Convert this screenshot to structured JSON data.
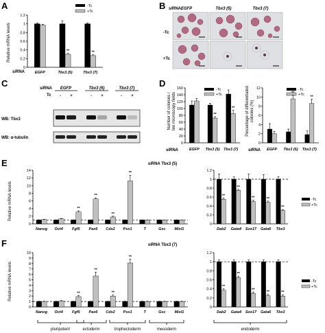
{
  "panels": {
    "A": {
      "letter": "A",
      "ylabel": "Relative mRNA levels",
      "row_label": "siRNA",
      "legend": [
        "-Tc",
        "+Tc"
      ],
      "categories": [
        "EGFP",
        "Tbx3 (5)",
        "Tbx3 (7)"
      ],
      "yticks": [
        "0",
        "0.2",
        "0.4",
        "0.6",
        "0.8",
        "1",
        "1.2"
      ]
    },
    "B": {
      "letter": "B",
      "header": "siRNA",
      "columns": [
        "EGFP",
        "Tbx3 (5)",
        "Tbx3 (7)"
      ],
      "rows": [
        "-Tc",
        "+Tc"
      ]
    },
    "C": {
      "letter": "C",
      "sirna_label": "siRNA",
      "tc_label": "Tc",
      "columns": [
        "EGFP",
        "Tbx3 (5)",
        "Tbx3 (7)"
      ],
      "tc_marks": [
        "-",
        "+",
        "-",
        "+",
        "-",
        "+"
      ],
      "blot1": "WB: Tbx3",
      "blot2": "WB: α-tubulin"
    },
    "D": {
      "letter": "D",
      "ylabel_left_1": "Number of colonies /",
      "ylabel_left_2": "ten microscopy fields",
      "ylabel_right_1": "Percentage of differentiated",
      "ylabel_right_2": "colonies (%)",
      "row_label": "siRNA",
      "legend": [
        "-Tc",
        "+Tc"
      ],
      "categories": [
        "EGFP",
        "Tbx3 (5)",
        "Tbx3 (7)"
      ],
      "yticks_left": [
        "0",
        "20",
        "40",
        "60",
        "80",
        "100",
        "120",
        "140",
        "160"
      ],
      "yticks_right": [
        "0",
        "2",
        "4",
        "6",
        "8",
        "10",
        "12"
      ]
    },
    "E": {
      "letter": "E",
      "title": "siRNA Tbx3 (5)",
      "ylabel": "Relative mRNA levels",
      "legend": [
        "-Tc",
        "+Tc"
      ],
      "yticks_left": [
        "0",
        "2",
        "4",
        "6",
        "8",
        "10",
        "12",
        "14"
      ],
      "yticks_right": [
        "0",
        "0.2",
        "0.4",
        "0.6",
        "0.8",
        "1",
        "1.2"
      ]
    },
    "F": {
      "letter": "F",
      "title": "siRNA Tbx3 (7)",
      "ylabel": "Relative mRNA levels",
      "legend": [
        "-Tc",
        "+Tc"
      ],
      "yticks_left": [
        "0",
        "1",
        "2",
        "3",
        "4",
        "5",
        "6",
        "7",
        "8",
        "9",
        "10"
      ],
      "yticks_right": [
        "0",
        "0.2",
        "0.4",
        "0.6",
        "0.8",
        "1",
        "1.2"
      ],
      "groups": [
        "pluripotent",
        "ectoderm",
        "trophectoderm",
        "mesoderm",
        "endoderm"
      ]
    }
  },
  "colors": {
    "minus_tc": "#000000",
    "plus_tc": "#c0c0c0"
  },
  "chart_data": [
    {
      "id": "A",
      "type": "bar",
      "categories": [
        "EGFP",
        "Tbx3 (5)",
        "Tbx3 (7)"
      ],
      "series": [
        {
          "name": "-Tc",
          "values": [
            1.0,
            1.0,
            1.0
          ]
        },
        {
          "name": "+Tc",
          "values": [
            0.97,
            0.3,
            0.27
          ]
        }
      ],
      "errors": [
        [
          0.02,
          0.07,
          0.02
        ],
        [
          0.02,
          0.02,
          0.02
        ]
      ],
      "sig": [
        [
          false,
          false,
          false
        ],
        [
          false,
          true,
          true
        ]
      ],
      "ylim": [
        0,
        1.2
      ]
    },
    {
      "id": "D1",
      "type": "bar",
      "categories": [
        "EGFP",
        "Tbx3 (5)",
        "Tbx3 (7)"
      ],
      "series": [
        {
          "name": "-Tc",
          "values": [
            110,
            110,
            142
          ]
        },
        {
          "name": "+Tc",
          "values": [
            122,
            72,
            85
          ]
        }
      ],
      "errors": [
        [
          12,
          5,
          12
        ],
        [
          7,
          4,
          10
        ]
      ],
      "sig": [
        [
          false,
          false,
          false
        ],
        [
          false,
          true,
          true
        ]
      ],
      "ylim": [
        0,
        160
      ]
    },
    {
      "id": "D2",
      "type": "bar",
      "categories": [
        "EGFP",
        "Tbx3 (5)",
        "Tbx3 (7)"
      ],
      "series": [
        {
          "name": "-Tc",
          "values": [
            3.0,
            2.4,
            1.8
          ]
        },
        {
          "name": "+Tc",
          "values": [
            2.0,
            9.6,
            8.6
          ]
        }
      ],
      "errors": [
        [
          1.2,
          0.6,
          0.8
        ],
        [
          0.5,
          0.8,
          0.9
        ]
      ],
      "sig": [
        [
          false,
          false,
          false
        ],
        [
          false,
          true,
          true
        ]
      ],
      "ylim": [
        0,
        12
      ]
    },
    {
      "id": "E1",
      "type": "bar",
      "categories": [
        "Nanog",
        "Oct4",
        "Fgf5",
        "Pax6",
        "Cdx2",
        "Psx1",
        "T",
        "Gsc",
        "Mixl1"
      ],
      "series": [
        {
          "name": "-Tc",
          "values": [
            1,
            1,
            1,
            1,
            1,
            1,
            1,
            1,
            1
          ]
        },
        {
          "name": "+Tc",
          "values": [
            1.1,
            1.3,
            3.1,
            6.5,
            1.8,
            11.2,
            1.0,
            1.0,
            1.0
          ]
        }
      ],
      "errors": [
        [
          0.05,
          0.05,
          0.05,
          0.05,
          0.05,
          0.05,
          0.05,
          0.05,
          0.05
        ],
        [
          0.1,
          0.1,
          0.3,
          0.3,
          0.2,
          1.5,
          0.05,
          0.05,
          0.05
        ]
      ],
      "sig": [
        [
          false,
          false,
          false,
          false,
          false,
          false,
          false,
          false,
          false
        ],
        [
          false,
          false,
          true,
          true,
          true,
          true,
          false,
          false,
          false
        ]
      ],
      "ylim": [
        0,
        14
      ],
      "reference_line": 1
    },
    {
      "id": "E2",
      "type": "bar",
      "categories": [
        "Dab2",
        "Gata4",
        "Sox17",
        "Gata6",
        "Tbx3"
      ],
      "series": [
        {
          "name": "-Tc",
          "values": [
            1,
            1,
            1,
            1,
            1
          ]
        },
        {
          "name": "+Tc",
          "values": [
            0.55,
            0.75,
            0.5,
            0.48,
            0.3
          ]
        }
      ],
      "errors": [
        [
          0.12,
          0.05,
          0.12,
          0.1,
          0.06
        ],
        [
          0.03,
          0.02,
          0.03,
          0.03,
          0.02
        ]
      ],
      "sig": [
        [
          false,
          false,
          false,
          false,
          false
        ],
        [
          true,
          true,
          true,
          true,
          true
        ]
      ],
      "ylim": [
        0,
        1.2
      ],
      "reference_line": 1
    },
    {
      "id": "F1",
      "type": "bar",
      "categories": [
        "Nanog",
        "Oct4",
        "Fgf5",
        "Pax6",
        "Cdx2",
        "Psx1",
        "T",
        "Gsc",
        "Mixl1"
      ],
      "series": [
        {
          "name": "-Tc",
          "values": [
            1,
            1,
            1,
            1,
            1,
            1,
            1,
            1,
            1
          ]
        },
        {
          "name": "+Tc",
          "values": [
            1.0,
            1.1,
            1.9,
            5.7,
            2.0,
            8.1,
            1.0,
            1.0,
            1.0
          ]
        }
      ],
      "errors": [
        [
          0.05,
          0.05,
          0.05,
          0.05,
          0.05,
          0.05,
          0.05,
          0.05,
          0.05
        ],
        [
          0.05,
          0.08,
          0.2,
          0.7,
          0.2,
          0.7,
          0.05,
          0.05,
          0.05
        ]
      ],
      "sig": [
        [
          false,
          false,
          false,
          false,
          false,
          false,
          false,
          false,
          false
        ],
        [
          false,
          false,
          true,
          true,
          true,
          true,
          false,
          false,
          false
        ]
      ],
      "ylim": [
        0,
        10
      ],
      "reference_line": 1
    },
    {
      "id": "F2",
      "type": "bar",
      "categories": [
        "Dab2",
        "Gata4",
        "Sox17",
        "Gata6",
        "Tbx3"
      ],
      "series": [
        {
          "name": "-Tc",
          "values": [
            1,
            1,
            1,
            1,
            1
          ]
        },
        {
          "name": "+Tc",
          "values": [
            0.37,
            0.65,
            0.3,
            0.25,
            0.24
          ]
        }
      ],
      "errors": [
        [
          0.04,
          0.04,
          0.04,
          0.04,
          0.04
        ],
        [
          0.03,
          0.03,
          0.03,
          0.03,
          0.03
        ]
      ],
      "sig": [
        [
          false,
          false,
          false,
          false,
          false
        ],
        [
          true,
          true,
          true,
          true,
          true
        ]
      ],
      "ylim": [
        0,
        1.2
      ],
      "reference_line": 1
    }
  ]
}
